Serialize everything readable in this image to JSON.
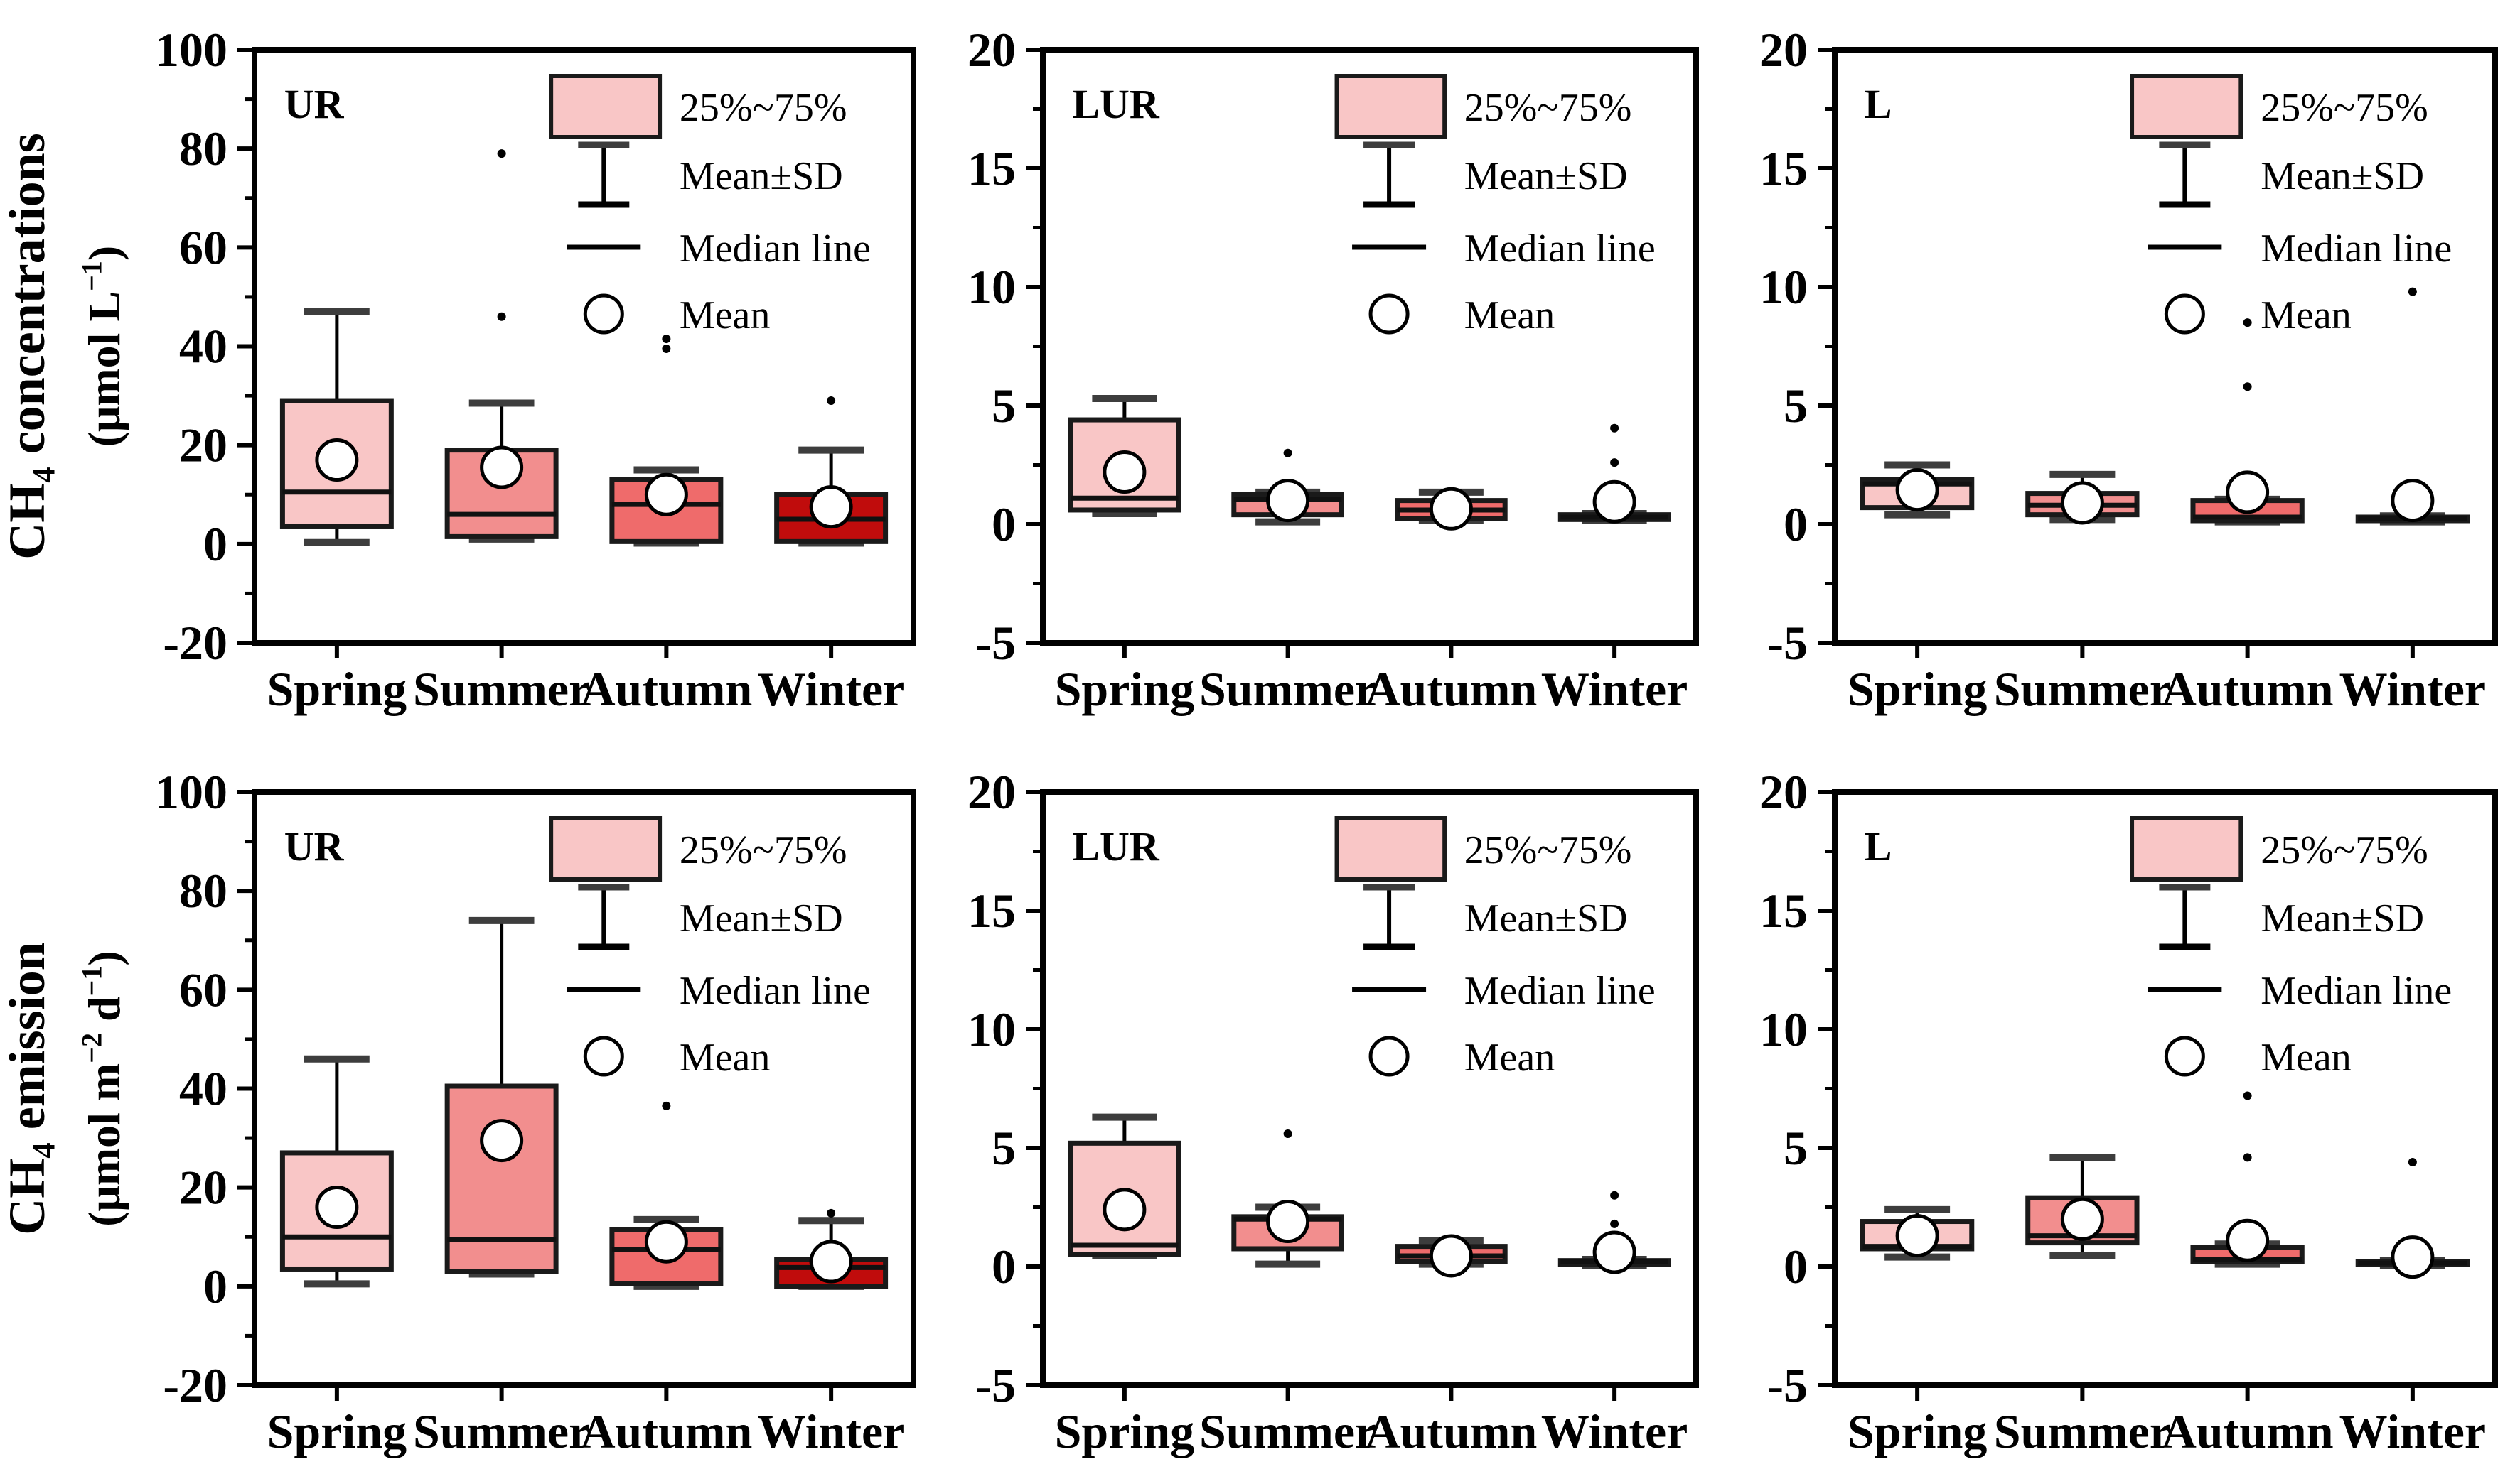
{
  "figure": {
    "background": "#ffffff",
    "colors": {
      "spring": "#F9C6C6",
      "summer": "#F28E8E",
      "autumn": "#EF6B6B",
      "winter": "#C00C0C",
      "box_stroke": "#1a1a1a",
      "whisker_cap": "#3d3d3d",
      "axis": "#000000",
      "legend_swatch": "#F9C6C6"
    },
    "legend": {
      "items": [
        {
          "icon": "box-swatch-icon",
          "label": "25%~75%"
        },
        {
          "icon": "error-bar-icon",
          "label": "Mean±SD"
        },
        {
          "icon": "median-line-icon",
          "label": "Median line"
        },
        {
          "icon": "mean-circle-icon",
          "label": "Mean"
        }
      ]
    },
    "row_labels": [
      {
        "line1": [
          {
            "t": "CH"
          },
          {
            "t": "4",
            "type": "sub"
          },
          {
            "t": " concentrations"
          }
        ],
        "line2": [
          {
            "t": "(μmol L"
          },
          {
            "t": "−1",
            "type": "sup"
          },
          {
            "t": ")"
          }
        ]
      },
      {
        "line1": [
          {
            "t": "CH"
          },
          {
            "t": "4",
            "type": "sub"
          },
          {
            "t": " emission"
          }
        ],
        "line2": [
          {
            "t": "(μmol m"
          },
          {
            "t": "−2",
            "type": "sup"
          },
          {
            "t": " d"
          },
          {
            "t": "−1",
            "type": "sup"
          },
          {
            "t": ")"
          }
        ]
      }
    ]
  },
  "chart_data": [
    {
      "id": "concentration-UR",
      "type": "box",
      "row": 0,
      "col": 0,
      "tag": "UR",
      "ylim": [
        -20,
        100
      ],
      "yticks": [
        100,
        80,
        60,
        40,
        20,
        0,
        -20
      ],
      "yminor_step": 10,
      "categories": [
        "Spring",
        "Summer",
        "Autumn",
        "Winter"
      ],
      "series": [
        {
          "name": "Spring",
          "color": "spring",
          "q1": 3.5,
          "median": 10.5,
          "q3": 29,
          "whisker_low": 0.3,
          "whisker_high": 47,
          "mean": 17,
          "outliers": []
        },
        {
          "name": "Summer",
          "color": "summer",
          "q1": 1.5,
          "median": 6,
          "q3": 19,
          "whisker_low": 1,
          "whisker_high": 28.5,
          "mean": 15.5,
          "outliers": [
            79,
            46
          ]
        },
        {
          "name": "Autumn",
          "color": "autumn",
          "q1": 0.5,
          "median": 8,
          "q3": 13,
          "whisker_low": 0.2,
          "whisker_high": 15,
          "mean": 10,
          "outliers": [
            41.5,
            39.5
          ]
        },
        {
          "name": "Winter",
          "color": "winter",
          "q1": 0.5,
          "median": 5,
          "q3": 10,
          "whisker_low": 0.2,
          "whisker_high": 19,
          "mean": 7.5,
          "outliers": [
            29
          ]
        }
      ]
    },
    {
      "id": "concentration-LUR",
      "type": "box",
      "row": 0,
      "col": 1,
      "tag": "LUR",
      "ylim": [
        -5,
        20
      ],
      "yticks": [
        20,
        15,
        10,
        5,
        0,
        -5
      ],
      "yminor_step": 2.5,
      "categories": [
        "Spring",
        "Summer",
        "Autumn",
        "Winter"
      ],
      "series": [
        {
          "name": "Spring",
          "color": "spring",
          "q1": 0.6,
          "median": 1.1,
          "q3": 4.4,
          "whisker_low": 0.45,
          "whisker_high": 5.3,
          "mean": 2.2,
          "outliers": []
        },
        {
          "name": "Summer",
          "color": "summer",
          "q1": 0.4,
          "median": 1.05,
          "q3": 1.25,
          "whisker_low": 0.1,
          "whisker_high": 1.35,
          "mean": 1.0,
          "outliers": [
            3.0
          ]
        },
        {
          "name": "Autumn",
          "color": "autumn",
          "q1": 0.25,
          "median": 0.6,
          "q3": 1.0,
          "whisker_low": 0.15,
          "whisker_high": 1.35,
          "mean": 0.65,
          "outliers": []
        },
        {
          "name": "Winter",
          "color": "winter",
          "q1": 0.2,
          "median": 0.3,
          "q3": 0.4,
          "whisker_low": 0.15,
          "whisker_high": 0.45,
          "mean": 0.95,
          "outliers": [
            4.05,
            2.6
          ]
        }
      ]
    },
    {
      "id": "concentration-L",
      "type": "box",
      "row": 0,
      "col": 2,
      "tag": "L",
      "ylim": [
        -5,
        20
      ],
      "yticks": [
        20,
        15,
        10,
        5,
        0,
        -5
      ],
      "yminor_step": 2.5,
      "categories": [
        "Spring",
        "Summer",
        "Autumn",
        "Winter"
      ],
      "series": [
        {
          "name": "Spring",
          "color": "spring",
          "q1": 0.7,
          "median": 1.7,
          "q3": 1.9,
          "whisker_low": 0.4,
          "whisker_high": 2.5,
          "mean": 1.45,
          "outliers": []
        },
        {
          "name": "Summer",
          "color": "summer",
          "q1": 0.4,
          "median": 0.8,
          "q3": 1.3,
          "whisker_low": 0.2,
          "whisker_high": 2.1,
          "mean": 0.9,
          "outliers": []
        },
        {
          "name": "Autumn",
          "color": "autumn",
          "q1": 0.15,
          "median": 0.3,
          "q3": 1.0,
          "whisker_low": 0.1,
          "whisker_high": 1.05,
          "mean": 1.35,
          "outliers": [
            8.5,
            5.8
          ]
        },
        {
          "name": "Winter",
          "color": "winter",
          "q1": 0.15,
          "median": 0.25,
          "q3": 0.3,
          "whisker_low": 0.1,
          "whisker_high": 0.35,
          "mean": 1.0,
          "outliers": [
            9.8
          ]
        }
      ]
    },
    {
      "id": "emission-UR",
      "type": "box",
      "row": 1,
      "col": 0,
      "tag": "UR",
      "ylim": [
        -20,
        100
      ],
      "yticks": [
        100,
        80,
        60,
        40,
        20,
        0,
        -20
      ],
      "yminor_step": 10,
      "categories": [
        "Spring",
        "Summer",
        "Autumn",
        "Winter"
      ],
      "series": [
        {
          "name": "Spring",
          "color": "spring",
          "q1": 3.5,
          "median": 10,
          "q3": 27,
          "whisker_low": 0.5,
          "whisker_high": 46,
          "mean": 16,
          "outliers": []
        },
        {
          "name": "Summer",
          "color": "summer",
          "q1": 3,
          "median": 9.5,
          "q3": 40.5,
          "whisker_low": 2.5,
          "whisker_high": 74,
          "mean": 29.5,
          "outliers": []
        },
        {
          "name": "Autumn",
          "color": "autumn",
          "q1": 0.5,
          "median": 7.5,
          "q3": 11.5,
          "whisker_low": 0,
          "whisker_high": 13.5,
          "mean": 9,
          "outliers": [
            36.5
          ]
        },
        {
          "name": "Winter",
          "color": "winter",
          "q1": 0,
          "median": 3.8,
          "q3": 5.5,
          "whisker_low": 0,
          "whisker_high": 13.3,
          "mean": 5,
          "outliers": [
            14.8
          ]
        }
      ]
    },
    {
      "id": "emission-LUR",
      "type": "box",
      "row": 1,
      "col": 1,
      "tag": "LUR",
      "ylim": [
        -5,
        20
      ],
      "yticks": [
        20,
        15,
        10,
        5,
        0,
        -5
      ],
      "yminor_step": 2.5,
      "categories": [
        "Spring",
        "Summer",
        "Autumn",
        "Winter"
      ],
      "series": [
        {
          "name": "Spring",
          "color": "spring",
          "q1": 0.5,
          "median": 0.9,
          "q3": 5.2,
          "whisker_low": 0.45,
          "whisker_high": 6.3,
          "mean": 2.4,
          "outliers": []
        },
        {
          "name": "Summer",
          "color": "summer",
          "q1": 0.75,
          "median": 2.0,
          "q3": 2.1,
          "whisker_low": 0.1,
          "whisker_high": 2.5,
          "mean": 1.9,
          "outliers": [
            5.6
          ]
        },
        {
          "name": "Autumn",
          "color": "autumn",
          "q1": 0.2,
          "median": 0.45,
          "q3": 0.85,
          "whisker_low": 0.1,
          "whisker_high": 1.1,
          "mean": 0.45,
          "outliers": []
        },
        {
          "name": "Winter",
          "color": "winter",
          "q1": 0.1,
          "median": 0.2,
          "q3": 0.25,
          "whisker_low": 0.05,
          "whisker_high": 0.3,
          "mean": 0.6,
          "outliers": [
            3.0,
            1.8
          ]
        }
      ]
    },
    {
      "id": "emission-L",
      "type": "box",
      "row": 1,
      "col": 2,
      "tag": "L",
      "ylim": [
        -5,
        20
      ],
      "yticks": [
        20,
        15,
        10,
        5,
        0,
        -5
      ],
      "yminor_step": 2.5,
      "categories": [
        "Spring",
        "Summer",
        "Autumn",
        "Winter"
      ],
      "series": [
        {
          "name": "Spring",
          "color": "spring",
          "q1": 0.75,
          "median": 0.85,
          "q3": 1.9,
          "whisker_low": 0.4,
          "whisker_high": 2.4,
          "mean": 1.3,
          "outliers": []
        },
        {
          "name": "Summer",
          "color": "summer",
          "q1": 1.0,
          "median": 1.3,
          "q3": 2.9,
          "whisker_low": 0.45,
          "whisker_high": 4.6,
          "mean": 2.0,
          "outliers": []
        },
        {
          "name": "Autumn",
          "color": "autumn",
          "q1": 0.2,
          "median": 0.3,
          "q3": 0.8,
          "whisker_low": 0.1,
          "whisker_high": 0.95,
          "mean": 1.1,
          "outliers": [
            7.2,
            4.6
          ]
        },
        {
          "name": "Winter",
          "color": "winter",
          "q1": 0.1,
          "median": 0.15,
          "q3": 0.2,
          "whisker_low": 0.05,
          "whisker_high": 0.25,
          "mean": 0.4,
          "outliers": [
            4.4
          ]
        }
      ]
    }
  ]
}
